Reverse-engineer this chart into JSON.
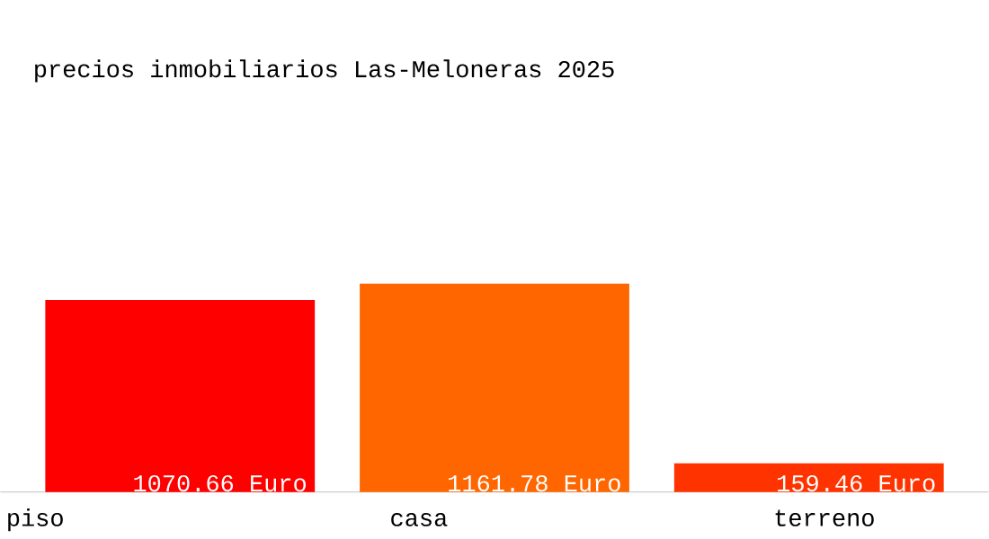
{
  "chart_data": {
    "type": "bar",
    "title": "precios inmobiliarios Las-Meloneras 2025",
    "categories": [
      "piso",
      "casa",
      "terreno"
    ],
    "values": [
      1070.66,
      1161.78,
      159.46
    ],
    "colors": [
      "#ff0000",
      "#ff6600",
      "#ff3300"
    ],
    "value_labels": [
      "1070.66 Euro",
      "1161.78 Euro",
      "159.46 Euro"
    ]
  }
}
